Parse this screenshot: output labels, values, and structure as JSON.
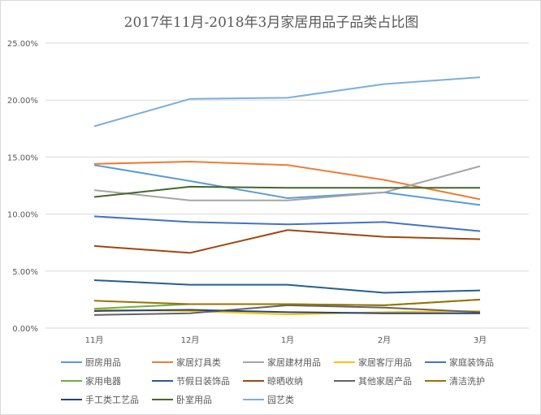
{
  "chart_data": {
    "type": "line",
    "title": "2017年11月-2018年3月家居用品子品类占比图",
    "categories": [
      "11月",
      "12月",
      "1月",
      "2月",
      "3月"
    ],
    "ylim": [
      0,
      25
    ],
    "yticks": [
      "0.00%",
      "5.00%",
      "10.00%",
      "15.00%",
      "20.00%",
      "25.00%"
    ],
    "grid": true,
    "legend_position": "bottom",
    "series": [
      {
        "name": "厨房用品",
        "color": "#5B9BD5",
        "values": [
          14.3,
          12.9,
          11.4,
          11.9,
          10.8
        ]
      },
      {
        "name": "家居灯具类",
        "color": "#ED7D31",
        "values": [
          14.4,
          14.6,
          14.3,
          13.0,
          11.3
        ]
      },
      {
        "name": "家居建材用品",
        "color": "#A5A5A5",
        "values": [
          12.1,
          11.2,
          11.2,
          11.9,
          14.2
        ]
      },
      {
        "name": "家居客厅用品",
        "color": "#FFC000",
        "values": [
          1.6,
          1.5,
          1.2,
          1.4,
          1.5
        ]
      },
      {
        "name": "家庭装饰品",
        "color": "#4472C4",
        "values": [
          9.8,
          9.3,
          9.1,
          9.3,
          8.5
        ]
      },
      {
        "name": "家用电器",
        "color": "#70AD47",
        "values": [
          1.7,
          2.1,
          2.1,
          2.0,
          2.5
        ]
      },
      {
        "name": "节假日装饰品",
        "color": "#255E91",
        "values": [
          4.2,
          3.8,
          3.8,
          3.1,
          3.3
        ]
      },
      {
        "name": "晾晒收纳",
        "color": "#9E480E",
        "values": [
          7.2,
          6.6,
          8.6,
          8.0,
          7.8
        ]
      },
      {
        "name": "其他家居产品",
        "color": "#636363",
        "values": [
          1.15,
          1.3,
          2.0,
          1.8,
          1.4
        ]
      },
      {
        "name": "清洁洗护",
        "color": "#997300",
        "values": [
          2.4,
          2.1,
          2.1,
          2.0,
          2.5
        ]
      },
      {
        "name": "手工类工艺品",
        "color": "#264478",
        "values": [
          1.5,
          1.6,
          1.4,
          1.3,
          1.3
        ]
      },
      {
        "name": "卧室用品",
        "color": "#43682B",
        "values": [
          11.5,
          12.4,
          12.3,
          12.3,
          12.3
        ]
      },
      {
        "name": "园艺类",
        "color": "#7CAFDD",
        "values": [
          17.7,
          20.1,
          20.2,
          21.4,
          22.0
        ]
      }
    ]
  }
}
